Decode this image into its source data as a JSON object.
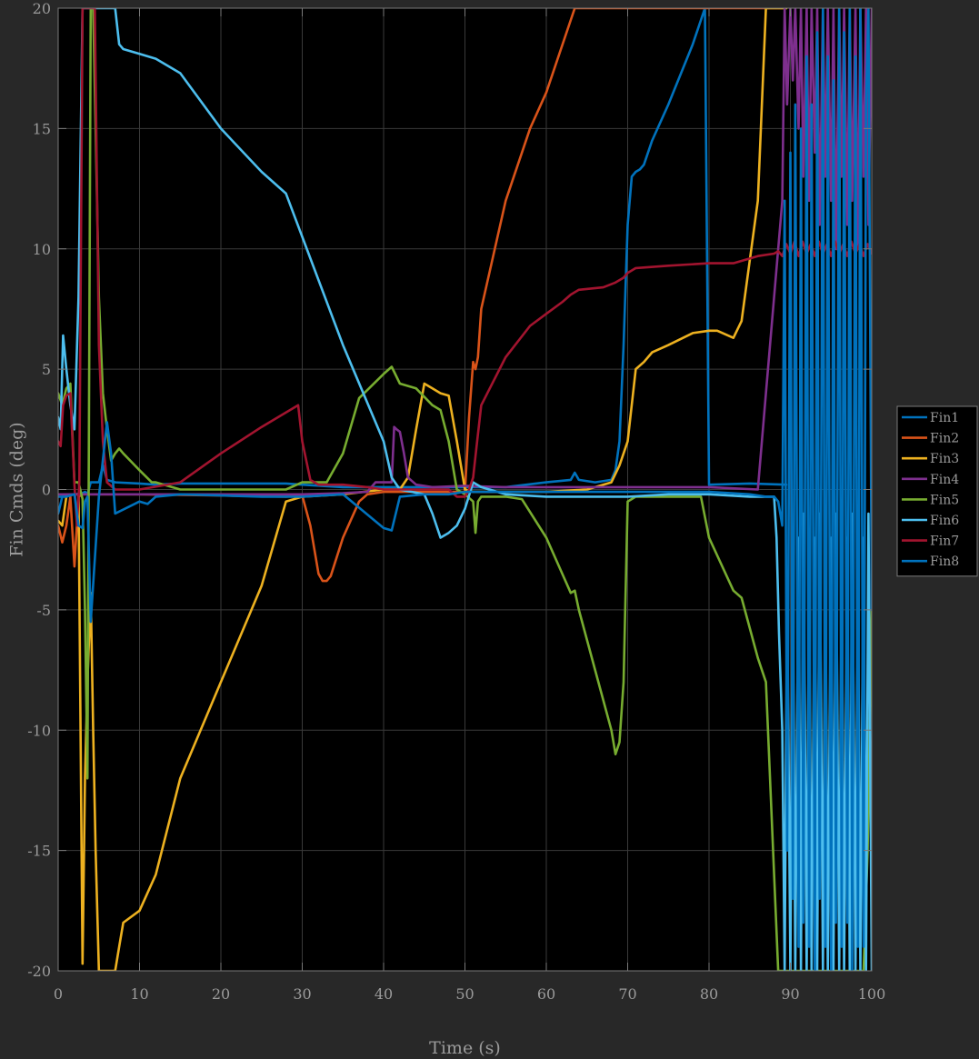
{
  "chart_data": {
    "type": "line",
    "title": "",
    "xlabel": "Time (s)",
    "ylabel": "Fin Cmds (deg)",
    "xlim": [
      0,
      100
    ],
    "ylim": [
      -20,
      20
    ],
    "xticks": [
      0,
      10,
      20,
      30,
      40,
      50,
      60,
      70,
      80,
      90,
      100
    ],
    "yticks": [
      -20,
      -15,
      -10,
      -5,
      0,
      5,
      10,
      15,
      20
    ],
    "xtick_labels": [
      "0",
      "10",
      "20",
      "30",
      "40",
      "50",
      "60",
      "70",
      "80",
      "90",
      "100"
    ],
    "ytick_labels": [
      "-20",
      "-15",
      "-10",
      "-5",
      "0",
      "5",
      "10",
      "15",
      "20"
    ],
    "grid": true,
    "legend_position": "outside-right",
    "colors": {
      "figure_background": "#282828",
      "axes_background": "#000000",
      "grid": "#3a3a3a",
      "axis": "#7a7a7a",
      "text": "#9a9a9a"
    },
    "series": [
      {
        "name": "Fin1",
        "color": "#0072BD",
        "x": [
          0,
          0.5,
          1,
          2,
          3,
          3.3,
          3.6,
          4,
          5,
          5.5,
          6,
          7,
          10,
          12,
          15,
          20,
          25,
          28,
          30,
          35,
          40,
          45,
          50,
          55,
          60,
          63,
          63.5,
          64,
          66,
          68,
          68.5,
          69,
          69.5,
          70,
          70.5,
          71,
          71.5,
          72,
          73,
          75,
          78,
          79.5,
          80,
          85,
          89.5
        ],
        "y": [
          -1,
          -0.3,
          -0.2,
          -0.2,
          -0.15,
          -0.1,
          -0.2,
          0.3,
          0.3,
          1,
          0.4,
          0.3,
          0.25,
          0.2,
          0.25,
          0.25,
          0.25,
          0.25,
          0.2,
          0.1,
          0.1,
          0.1,
          0.1,
          0.1,
          0.3,
          0.4,
          0.7,
          0.4,
          0.3,
          0.4,
          0.8,
          2,
          6,
          11,
          13,
          13.2,
          13.3,
          13.5,
          14.5,
          16,
          18.5,
          20,
          0.2,
          0.25,
          0.2
        ]
      },
      {
        "name": "Fin2",
        "color": "#D95319",
        "x": [
          0,
          0.5,
          1,
          1.5,
          2,
          2.5,
          3,
          5,
          10,
          20,
          28,
          30,
          31,
          32,
          32.5,
          33,
          33.5,
          35,
          37,
          38,
          40,
          45,
          50,
          50.5,
          51,
          51.3,
          51.6,
          52,
          55,
          58,
          60,
          63.5,
          70,
          80,
          89.5
        ],
        "y": [
          -1.5,
          -2.2,
          -1.5,
          -0.3,
          -3.2,
          -0.3,
          -0.2,
          -0.2,
          -0.2,
          -0.25,
          -0.3,
          -0.25,
          -1.5,
          -3.5,
          -3.8,
          -3.8,
          -3.6,
          -2,
          -0.5,
          -0.2,
          -0.1,
          -0.1,
          -0.1,
          3,
          5.3,
          5.0,
          5.5,
          7.5,
          12,
          15,
          16.5,
          20,
          20,
          20,
          20
        ]
      },
      {
        "name": "Fin3",
        "color": "#EDB120",
        "x": [
          0,
          0.5,
          1,
          1.5,
          2,
          2.5,
          3,
          3.3,
          3.6,
          4,
          4.3,
          4.6,
          5,
          5.5,
          7,
          7.5,
          8,
          10,
          12,
          15,
          20,
          25,
          28,
          30,
          35,
          40,
          42,
          43,
          44,
          45,
          46,
          47,
          48,
          49,
          50,
          51,
          52,
          55,
          60,
          65,
          68,
          69,
          70,
          71,
          72,
          73,
          75,
          78,
          80,
          81,
          83,
          84,
          86,
          87,
          89.5
        ],
        "y": [
          -1.3,
          -1.5,
          -0.3,
          -0.2,
          -0.2,
          -0.2,
          -19.7,
          -12,
          -8,
          -4.3,
          -10,
          -15,
          -20,
          -20,
          -20,
          -19,
          -18,
          -17.5,
          -16,
          -12,
          -8,
          -4,
          -0.5,
          -0.3,
          -0.2,
          0,
          0,
          0.5,
          2.5,
          4.4,
          4.2,
          4.0,
          3.9,
          2,
          0,
          -0.1,
          -0.1,
          -0.1,
          -0.1,
          0,
          0.3,
          1,
          2,
          5,
          5.3,
          5.7,
          6,
          6.5,
          6.6,
          6.6,
          6.3,
          7,
          12,
          20,
          20
        ]
      },
      {
        "name": "Fin4",
        "color": "#7E2F8E",
        "x": [
          0,
          5,
          10,
          15,
          20,
          28,
          30,
          35,
          38,
          39,
          40,
          41,
          41.3,
          41.6,
          42,
          42.5,
          43,
          44,
          46,
          50,
          55,
          60,
          65,
          70,
          75,
          80,
          86,
          87,
          88,
          88.5,
          89,
          89.3,
          89.6,
          90,
          90.3,
          90.6,
          91,
          91.3,
          91.6,
          92,
          92.3,
          92.6,
          93,
          93.3,
          93.6,
          94,
          94.3,
          94.6,
          95,
          95.3,
          95.6,
          96,
          96.3,
          96.6,
          97,
          97.3,
          97.6,
          98,
          98.3,
          98.6,
          99,
          99.3,
          99.6,
          100
        ],
        "y": [
          -0.2,
          -0.2,
          -0.2,
          -0.2,
          -0.2,
          -0.2,
          -0.2,
          -0.15,
          -0.1,
          0.3,
          0.3,
          0.3,
          2.6,
          2.5,
          2.4,
          1.5,
          0.5,
          0.2,
          0.1,
          0.15,
          0.1,
          0.1,
          0.1,
          0.1,
          0.1,
          0.1,
          0,
          4,
          8,
          10,
          12,
          20,
          16,
          20,
          17,
          20,
          15,
          20,
          13,
          20,
          12,
          20,
          14,
          20,
          11,
          20,
          13,
          20,
          12,
          20,
          10,
          20,
          13,
          20,
          11,
          20,
          12,
          20,
          10,
          20,
          13,
          20,
          11,
          20
        ]
      },
      {
        "name": "Fin5",
        "color": "#77AC30",
        "x": [
          0,
          0.5,
          1,
          1.5,
          2,
          2.5,
          3,
          3.3,
          3.6,
          4,
          4.3,
          4.6,
          5,
          5.5,
          6,
          6.5,
          7,
          7.5,
          8,
          10,
          11.5,
          12,
          15,
          20,
          28,
          30,
          33,
          35,
          37,
          40,
          41,
          42,
          44,
          46,
          47,
          48,
          49,
          50,
          51,
          51.3,
          51.6,
          52,
          55,
          57,
          60,
          63,
          63.5,
          64,
          66,
          68,
          68.5,
          69,
          69.5,
          70,
          71,
          75,
          79,
          80,
          83,
          84,
          86,
          87,
          88.5,
          89,
          89.5,
          90,
          90.5,
          91,
          91.5,
          92,
          92.5,
          93,
          93.5,
          94,
          94.5,
          95,
          95.5,
          96,
          96.5,
          97,
          97.5,
          98,
          98.5,
          99,
          99.5,
          100
        ],
        "y": [
          4,
          3.5,
          4.2,
          4.4,
          0.3,
          0.3,
          -0.4,
          -5,
          -12,
          20,
          20,
          15,
          8,
          4,
          2.5,
          1.2,
          1.5,
          1.7,
          1.5,
          0.8,
          0.3,
          0.3,
          0,
          0,
          0,
          0.3,
          0.3,
          1.5,
          3.8,
          4.8,
          5.1,
          4.4,
          4.2,
          3.5,
          3.3,
          2.0,
          0,
          -0.2,
          -0.5,
          -1.8,
          -0.5,
          -0.3,
          -0.3,
          -0.4,
          -2,
          -4.3,
          -4.2,
          -5,
          -7.5,
          -10,
          -11,
          -10.5,
          -8,
          -0.5,
          -0.3,
          -0.3,
          -0.3,
          -2,
          -4.2,
          -4.5,
          -7,
          -8,
          -20,
          -20,
          -20,
          -20,
          -20,
          -20,
          -20,
          -20,
          -20,
          -20,
          -20,
          -20,
          -20,
          -20,
          -20,
          -20,
          -20,
          -20,
          -20,
          -20,
          -20,
          -20,
          -15,
          -5
        ]
      },
      {
        "name": "Fin6",
        "color": "#4DBEEE",
        "x": [
          0,
          0.3,
          0.6,
          1,
          1.5,
          2,
          2.5,
          3,
          3.5,
          4,
          5,
          6,
          7,
          7.5,
          8,
          10,
          12,
          15,
          20,
          25,
          28,
          30,
          35,
          40,
          41,
          42,
          45,
          46,
          47,
          48,
          49,
          50,
          51,
          52,
          55,
          60,
          65,
          70,
          75,
          80,
          85,
          86,
          88,
          88.3,
          88.6,
          89,
          89.3,
          89.6,
          90,
          90.3,
          90.6,
          91,
          91.3,
          91.6,
          92,
          92.3,
          92.6,
          93,
          93.3,
          93.6,
          94,
          94.3,
          94.6,
          95,
          95.3,
          95.6,
          96,
          96.3,
          96.6,
          97,
          97.3,
          97.6,
          98,
          98.3,
          98.6,
          99,
          99.3,
          99.6,
          100
        ],
        "y": [
          3,
          2.5,
          6.4,
          5,
          3.5,
          2.5,
          8,
          20,
          20,
          20,
          20,
          20,
          20,
          18.5,
          18.3,
          18.1,
          17.9,
          17.3,
          15,
          13.2,
          12.3,
          10.5,
          6,
          2,
          0.5,
          0,
          -0.2,
          -1,
          -2,
          -1.8,
          -1.5,
          -0.8,
          0.3,
          0.1,
          -0.2,
          -0.3,
          -0.3,
          -0.3,
          -0.2,
          -0.2,
          -0.3,
          -0.3,
          -0.3,
          -2,
          -6,
          -10,
          -20,
          -4,
          -20,
          -3,
          -20,
          -2,
          -20,
          -1,
          -20,
          -3,
          -20,
          -2,
          -20,
          -1,
          -20,
          -3,
          -20,
          -2,
          -20,
          -1,
          -20,
          -3,
          -20,
          -2,
          -20,
          -1,
          -20,
          -3,
          -20,
          -2,
          -20,
          -1,
          -20
        ]
      },
      {
        "name": "Fin7",
        "color": "#A2142F",
        "x": [
          0,
          0.3,
          0.6,
          1,
          1.5,
          2,
          2.3,
          2.6,
          3,
          3.5,
          4,
          4.5,
          5,
          5.5,
          6,
          7,
          10,
          15,
          20,
          25,
          28,
          29.5,
          30,
          31,
          32,
          33,
          35,
          38,
          40,
          45,
          48,
          49,
          50,
          50.5,
          51,
          51.5,
          52,
          55,
          58,
          60,
          62,
          63,
          64,
          67,
          68.5,
          69.5,
          70,
          71,
          75,
          80,
          83,
          86,
          88,
          88.5,
          89,
          89.5,
          90,
          90.5,
          91,
          91.5,
          92,
          92.5,
          93,
          93.5,
          94,
          94.5,
          95,
          95.5,
          96,
          96.5,
          97,
          97.5,
          98,
          98.5,
          99,
          99.5,
          100
        ],
        "y": [
          2,
          1.8,
          3.5,
          3.9,
          4,
          0.2,
          -1.5,
          0.3,
          20,
          20,
          20,
          20,
          6,
          2,
          0.3,
          0,
          0,
          0.3,
          1.5,
          2.6,
          3.2,
          3.5,
          2,
          0.4,
          0.2,
          0.2,
          0.2,
          0.1,
          0,
          0,
          0,
          -0.3,
          -0.3,
          0,
          0.5,
          2,
          3.5,
          5.5,
          6.8,
          7.3,
          7.8,
          8.1,
          8.3,
          8.4,
          8.6,
          8.8,
          9.0,
          9.2,
          9.3,
          9.4,
          9.4,
          9.7,
          9.8,
          9.9,
          9.7,
          10.2,
          9.8,
          10.3,
          9.7,
          10.3,
          9.8,
          10.2,
          9.7,
          10.3,
          9.8,
          10.2,
          9.7,
          10.3,
          9.8,
          10.2,
          9.7,
          10.3,
          9.8,
          10.2,
          9.7,
          10.2,
          9.8
        ]
      },
      {
        "name": "Fin8",
        "color": "#0072BD",
        "x": [
          0,
          1,
          2,
          2.5,
          3,
          3.3,
          3.6,
          4,
          5,
          6,
          6.5,
          7,
          10,
          11,
          12,
          15,
          20,
          25,
          30,
          35,
          40,
          41,
          42,
          45,
          48,
          50,
          55,
          60,
          65,
          70,
          75,
          80,
          85,
          87,
          88,
          88.5,
          89,
          89.3,
          89.6,
          90,
          90.3,
          90.6,
          91,
          91.3,
          91.6,
          92,
          92.3,
          92.6,
          93,
          93.3,
          93.6,
          94,
          94.3,
          94.6,
          95,
          95.3,
          95.6,
          96,
          96.3,
          96.6,
          97,
          97.3,
          97.6,
          98,
          98.3,
          98.6,
          99,
          99.3,
          99.6,
          100
        ],
        "y": [
          -0.3,
          -0.3,
          -0.2,
          -1.5,
          -1.6,
          -0.5,
          -0.3,
          -5.5,
          -0.3,
          2.8,
          1.5,
          -1,
          -0.5,
          -0.6,
          -0.3,
          -0.2,
          -0.25,
          -0.3,
          -0.3,
          -0.2,
          -1.6,
          -1.7,
          -0.3,
          -0.2,
          -0.2,
          -0.1,
          -0.1,
          -0.1,
          -0.1,
          -0.1,
          -0.1,
          -0.1,
          -0.2,
          -0.3,
          -0.3,
          -0.5,
          -1.5,
          12,
          -15,
          14,
          -17,
          16,
          -19,
          15,
          -18,
          18,
          -19,
          16,
          -20,
          19,
          -17,
          20,
          -19,
          18,
          -20,
          17,
          -18,
          20,
          -19,
          19,
          -18,
          20,
          -20,
          18,
          -19,
          20,
          -19,
          16,
          20,
          -5
        ]
      }
    ]
  }
}
